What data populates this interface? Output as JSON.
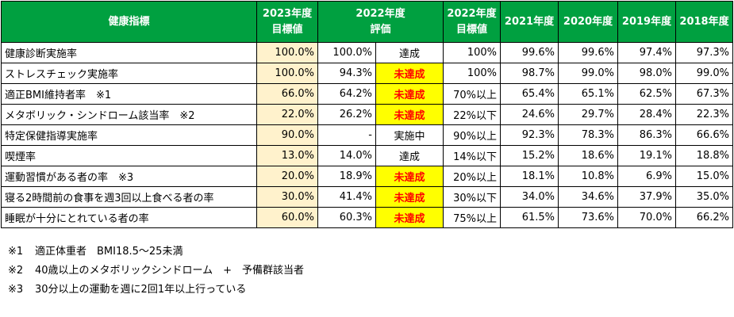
{
  "headers": {
    "indicator": "健康指標",
    "target2023_l1": "2023年度",
    "target2023_l2": "目標値",
    "y2022_l1": "2022年度",
    "y2022_l2": "評価",
    "target2022_l1": "2022年度",
    "target2022_l2": "目標値",
    "y2021": "2021年度",
    "y2020": "2020年度",
    "y2019": "2019年度",
    "y2018": "2018年度"
  },
  "rows": [
    {
      "name": "健康診断実施率",
      "t2023": "100.0%",
      "v2022": "100.0%",
      "eval": "達成",
      "eval_bad": false,
      "t2022": "100%",
      "y2021": "99.6%",
      "y2020": "99.6%",
      "y2019": "97.4%",
      "y2018": "97.3%"
    },
    {
      "name": "ストレスチェック実施率",
      "t2023": "100.0%",
      "v2022": "94.3%",
      "eval": "未達成",
      "eval_bad": true,
      "t2022": "100%",
      "y2021": "98.7%",
      "y2020": "99.0%",
      "y2019": "98.0%",
      "y2018": "99.0%"
    },
    {
      "name": "適正BMI維持者率　※1",
      "t2023": "66.0%",
      "v2022": "64.2%",
      "eval": "未達成",
      "eval_bad": true,
      "t2022": "70%以上",
      "y2021": "65.4%",
      "y2020": "65.1%",
      "y2019": "62.5%",
      "y2018": "67.3%"
    },
    {
      "name": "メタボリック・シンドローム該当率　※2",
      "t2023": "22.0%",
      "v2022": "26.2%",
      "eval": "未達成",
      "eval_bad": true,
      "t2022": "22%以下",
      "y2021": "24.6%",
      "y2020": "29.7%",
      "y2019": "28.4%",
      "y2018": "22.3%"
    },
    {
      "name": "特定保健指導実施率",
      "t2023": "90.0%",
      "v2022": "-",
      "eval": "実施中",
      "eval_bad": false,
      "t2022": "90%以上",
      "y2021": "92.3%",
      "y2020": "78.3%",
      "y2019": "86.3%",
      "y2018": "66.6%"
    },
    {
      "name": "喫煙率",
      "t2023": "13.0%",
      "v2022": "14.0%",
      "eval": "達成",
      "eval_bad": false,
      "t2022": "14%以下",
      "y2021": "15.2%",
      "y2020": "18.6%",
      "y2019": "19.1%",
      "y2018": "18.8%"
    },
    {
      "name": "運動習慣がある者の率　※3",
      "t2023": "20.0%",
      "v2022": "18.9%",
      "eval": "未達成",
      "eval_bad": true,
      "t2022": "20%以上",
      "y2021": "18.1%",
      "y2020": "10.8%",
      "y2019": "6.9%",
      "y2018": "15.0%"
    },
    {
      "name": "寝る2時間前の食事を週3回以上食べる者の率",
      "t2023": "30.0%",
      "v2022": "41.4%",
      "eval": "未達成",
      "eval_bad": true,
      "t2022": "30%以下",
      "y2021": "34.0%",
      "y2020": "34.6%",
      "y2019": "37.9%",
      "y2018": "35.0%"
    },
    {
      "name": "睡眠が十分にとれている者の率",
      "t2023": "60.0%",
      "v2022": "60.3%",
      "eval": "未達成",
      "eval_bad": true,
      "t2022": "75%以上",
      "y2021": "61.5%",
      "y2020": "73.6%",
      "y2019": "70.0%",
      "y2018": "66.2%"
    }
  ],
  "notes": [
    {
      "mark": "※1",
      "text": "適正体重者　BMI18.5～25未満"
    },
    {
      "mark": "※2",
      "text": "40歳以上のメタボリックシンドローム　+　予備群該当者"
    },
    {
      "mark": "※3",
      "text": "30分以上の運動を週に2回1年以上行っている"
    }
  ],
  "colors": {
    "header_bg": "#00a040",
    "target_bg": "#fff2cc",
    "bad_bg": "#ffff00",
    "bad_text": "#ff0000"
  }
}
